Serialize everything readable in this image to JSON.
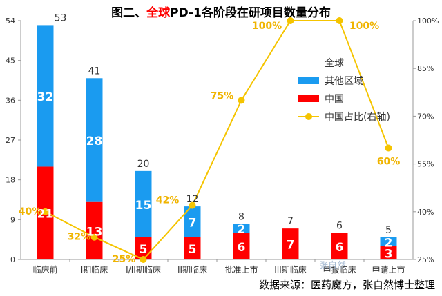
{
  "title": {
    "part1": "图二、",
    "part2": "全球",
    "part3": "PD-1各阶段在研项目数量分布"
  },
  "source": "数据来源：医药魔方，张自然博士整理",
  "watermark": "张自然",
  "colors": {
    "other": "#1a9bf0",
    "china": "#ff0000",
    "share": "#f5c400",
    "share_label": "#f0b400"
  },
  "chart_data": {
    "type": "bar",
    "stacked": true,
    "categories": [
      "临床前",
      "I期临床",
      "I/II期临床",
      "II期临床",
      "批准上市",
      "III期临床",
      "申报临床",
      "申请上市"
    ],
    "series": [
      {
        "name": "中国",
        "values": [
          21,
          13,
          5,
          5,
          6,
          7,
          6,
          3
        ]
      },
      {
        "name": "其他区域",
        "values": [
          32,
          28,
          15,
          7,
          2,
          0,
          0,
          2
        ]
      }
    ],
    "totals": [
      53,
      41,
      20,
      12,
      8,
      7,
      6,
      5
    ],
    "line": {
      "name": "中国占比(右轴)",
      "values": [
        40,
        32,
        25,
        42,
        75,
        100,
        100,
        60
      ],
      "labels": [
        "40%",
        "32%",
        "25%",
        "42%",
        "75%",
        "100%",
        "100%",
        "60%"
      ]
    },
    "ylim": [
      0,
      54
    ],
    "yticks": [
      "0",
      "9",
      "18",
      "27",
      "36",
      "45",
      "54"
    ],
    "y2lim": [
      25,
      100
    ],
    "y2ticks": [
      "25%",
      "40%",
      "55%",
      "70%",
      "85%",
      "100%"
    ],
    "legend": {
      "title": "全球",
      "items": [
        "其他区域",
        "中国",
        "中国占比(右轴)"
      ],
      "position": "right"
    }
  }
}
